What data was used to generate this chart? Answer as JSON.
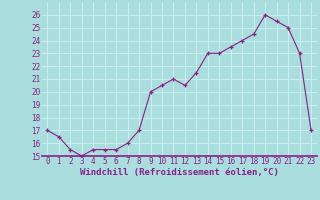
{
  "x": [
    0,
    1,
    2,
    3,
    4,
    5,
    6,
    7,
    8,
    9,
    10,
    11,
    12,
    13,
    14,
    15,
    16,
    17,
    18,
    19,
    20,
    21,
    22,
    23
  ],
  "y": [
    17,
    16.5,
    15.5,
    15,
    15.5,
    15.5,
    15.5,
    16,
    17,
    20,
    20.5,
    21,
    20.5,
    21.5,
    23,
    23,
    23.5,
    24,
    24.5,
    26,
    25.5,
    25,
    23,
    17
  ],
  "line_color": "#882288",
  "marker": "+",
  "marker_color": "#882288",
  "bg_color": "#aadddd",
  "grid_color": "#cceeee",
  "xlabel": "Windchill (Refroidissement éolien,°C)",
  "xlabel_color": "#882288",
  "xlabel_fontsize": 6.5,
  "tick_color": "#882288",
  "ylim": [
    15,
    27
  ],
  "yticks": [
    15,
    16,
    17,
    18,
    19,
    20,
    21,
    22,
    23,
    24,
    25,
    26
  ],
  "xticks": [
    0,
    1,
    2,
    3,
    4,
    5,
    6,
    7,
    8,
    9,
    10,
    11,
    12,
    13,
    14,
    15,
    16,
    17,
    18,
    19,
    20,
    21,
    22,
    23
  ],
  "tick_fontsize": 5.5
}
